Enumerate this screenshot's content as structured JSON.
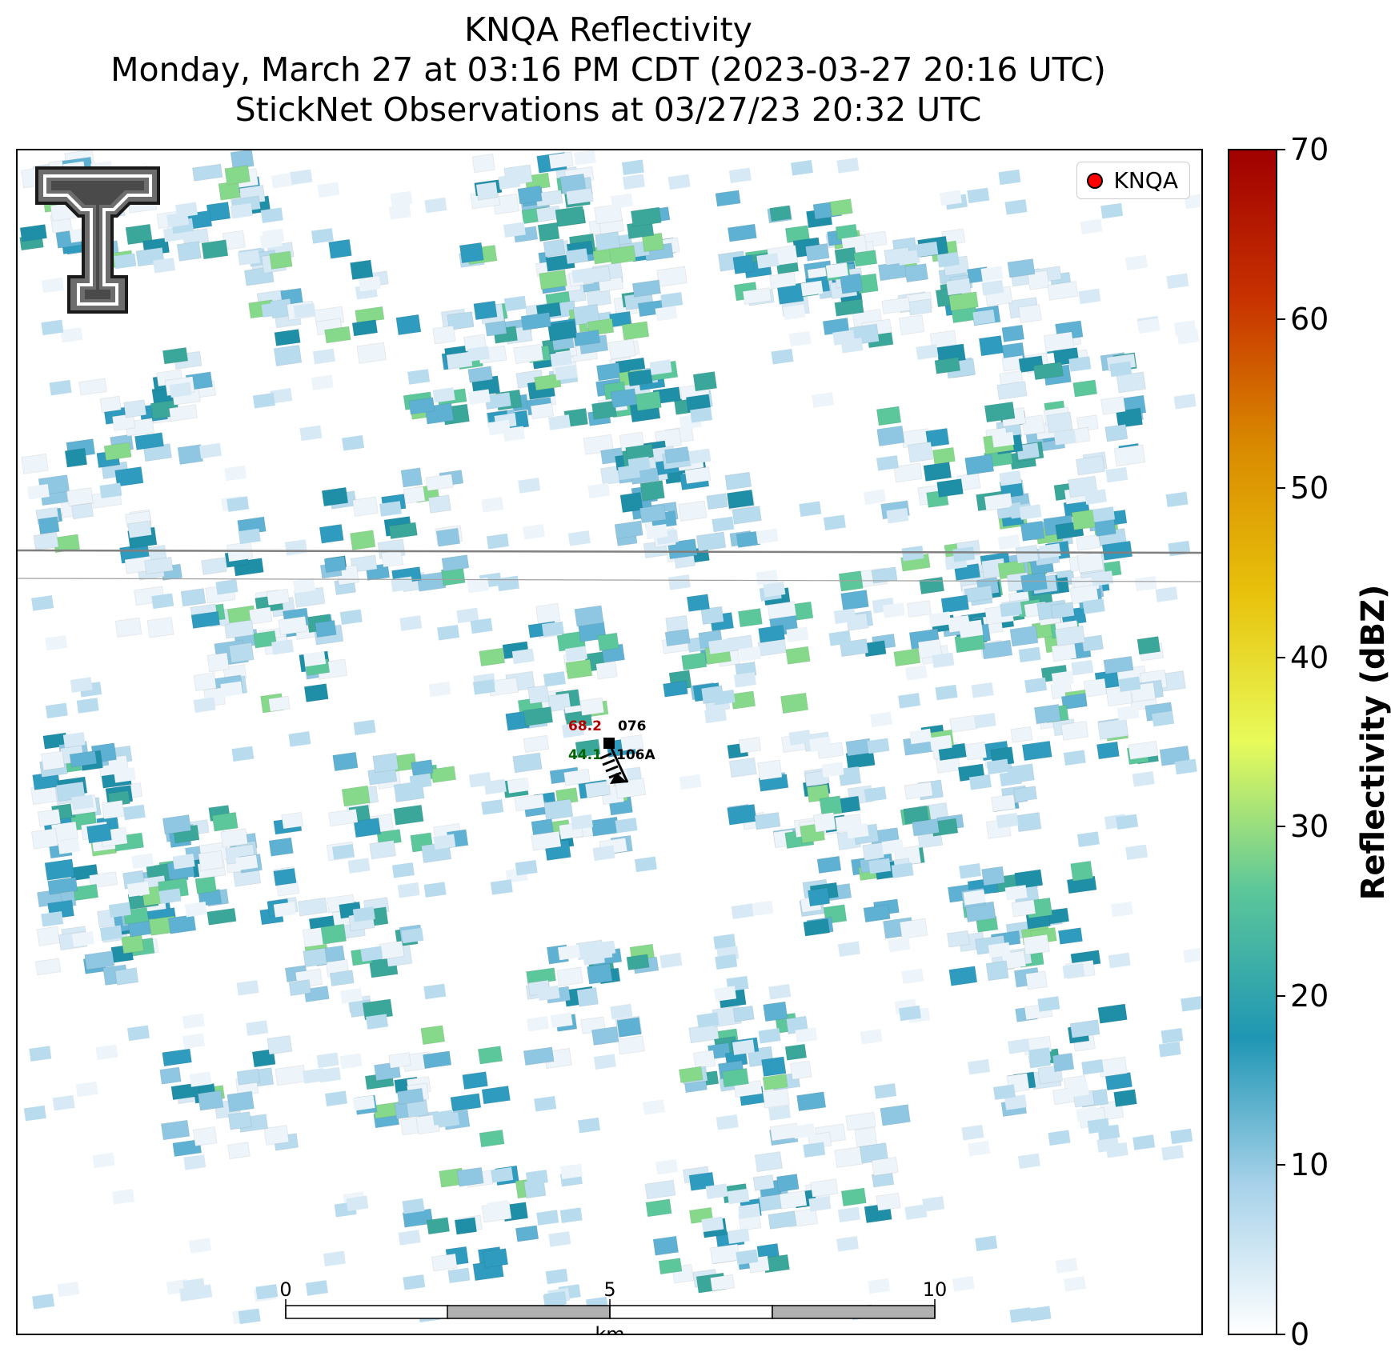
{
  "title": {
    "line1": "KNQA Reflectivity",
    "line2": "Monday, March 27 at 03:16 PM CDT (2023-03-27 20:16 UTC)",
    "line3": "StickNet Observations at 03/27/23 20:32 UTC"
  },
  "legend": {
    "label": "KNQA",
    "marker_color": "#ff0000"
  },
  "station": {
    "temperature": "68.2",
    "dewpoint": "44.1",
    "id_top": "076",
    "id_bottom": "106A",
    "temperature_color": "#b30000",
    "dewpoint_color": "#006400"
  },
  "scale_bar": {
    "unit": "km",
    "ticks": [
      "0",
      "5",
      "10"
    ]
  },
  "colorbar": {
    "label": "Reflectivity (dBZ)",
    "min": 0,
    "max": 70,
    "ticks": [
      "0",
      "10",
      "20",
      "30",
      "40",
      "50",
      "60",
      "70"
    ],
    "colors": [
      "#ffffff",
      "#a8d2ea",
      "#1f96b4",
      "#5cc79a",
      "#e8fb5a",
      "#e8c20c",
      "#d98a00",
      "#c83200",
      "#a00000"
    ]
  },
  "logo": {
    "icon": "texas-tech-double-t-logo"
  }
}
